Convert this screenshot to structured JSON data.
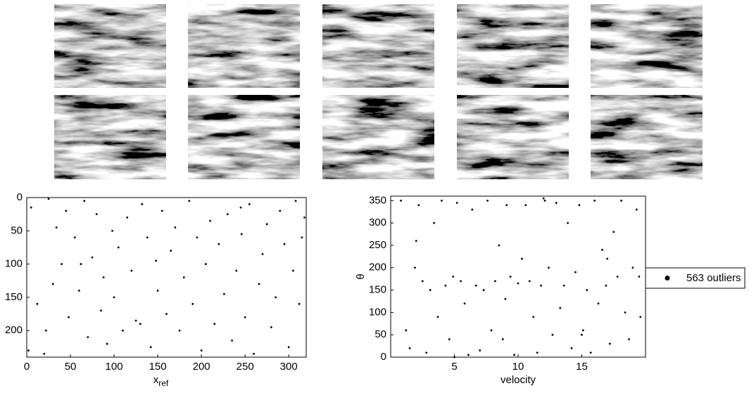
{
  "chart_data": [
    {
      "type": "scatter",
      "xlabel": "x",
      "xlabel_subscript": "ref",
      "xlim": [
        0,
        320
      ],
      "ylim": [
        0,
        240
      ],
      "yreverse": true,
      "xticks": [
        0,
        50,
        100,
        150,
        200,
        250,
        300
      ],
      "yticks": [
        0,
        50,
        100,
        150,
        200
      ],
      "series": [
        {
          "color": "#000000",
          "x": [
            2,
            5,
            12,
            22,
            25,
            30,
            34,
            40,
            45,
            48,
            55,
            60,
            66,
            70,
            75,
            80,
            85,
            88,
            92,
            98,
            100,
            105,
            110,
            115,
            120,
            125,
            132,
            138,
            142,
            148,
            150,
            155,
            160,
            165,
            170,
            175,
            180,
            186,
            190,
            195,
            200,
            205,
            210,
            215,
            220,
            226,
            230,
            235,
            240,
            246,
            250,
            255,
            260,
            266,
            270,
            275,
            280,
            285,
            290,
            295,
            300,
            305,
            308,
            312,
            315,
            318,
            20,
            62,
            130,
            245
          ],
          "y": [
            230,
            15,
            160,
            200,
            2,
            130,
            45,
            100,
            20,
            180,
            60,
            140,
            5,
            210,
            90,
            25,
            170,
            120,
            220,
            50,
            150,
            75,
            200,
            30,
            110,
            185,
            10,
            60,
            225,
            95,
            140,
            20,
            175,
            80,
            45,
            200,
            120,
            5,
            160,
            60,
            230,
            100,
            35,
            190,
            70,
            145,
            25,
            215,
            110,
            55,
            180,
            10,
            235,
            130,
            85,
            40,
            195,
            150,
            20,
            70,
            225,
            110,
            5,
            160,
            60,
            30,
            235,
            100,
            190,
            15
          ]
        }
      ]
    },
    {
      "type": "scatter",
      "xlabel": "velocity",
      "ylabel": "θ",
      "xlim": [
        0,
        20
      ],
      "ylim": [
        0,
        360
      ],
      "xticks": [
        5,
        10,
        15
      ],
      "yticks": [
        0,
        50,
        100,
        150,
        200,
        250,
        300,
        350
      ],
      "legend": "outside-right",
      "series": [
        {
          "name": "563 outliers",
          "color": "#000000",
          "x": [
            0.8,
            1.2,
            1.5,
            1.9,
            2.2,
            2.5,
            2.8,
            3.1,
            3.4,
            3.7,
            4.0,
            4.3,
            4.6,
            4.9,
            5.2,
            5.5,
            5.8,
            6.1,
            6.4,
            6.7,
            7.0,
            7.3,
            7.6,
            7.9,
            8.2,
            8.5,
            8.8,
            9.1,
            9.4,
            9.7,
            10.0,
            10.3,
            10.6,
            10.9,
            11.2,
            11.5,
            11.8,
            12.1,
            12.4,
            12.7,
            13.0,
            13.3,
            13.6,
            13.9,
            14.2,
            14.5,
            14.8,
            15.1,
            15.4,
            15.7,
            16.0,
            16.3,
            16.6,
            16.9,
            17.2,
            17.5,
            17.8,
            18.1,
            18.4,
            18.7,
            19.0,
            19.3,
            19.6,
            2.0,
            5.0,
            9.0,
            12.0,
            15.0,
            17.0,
            19.5
          ],
          "y": [
            350,
            60,
            20,
            200,
            340,
            170,
            10,
            150,
            300,
            90,
            350,
            160,
            40,
            180,
            345,
            170,
            120,
            5,
            330,
            160,
            15,
            150,
            350,
            60,
            170,
            250,
            40,
            340,
            180,
            5,
            165,
            220,
            340,
            170,
            90,
            10,
            160,
            350,
            200,
            50,
            345,
            110,
            160,
            300,
            20,
            190,
            340,
            60,
            150,
            10,
            350,
            120,
            240,
            160,
            30,
            280,
            180,
            350,
            100,
            40,
            200,
            330,
            90,
            260,
            0,
            130,
            355,
            50,
            220,
            180
          ]
        }
      ]
    }
  ]
}
